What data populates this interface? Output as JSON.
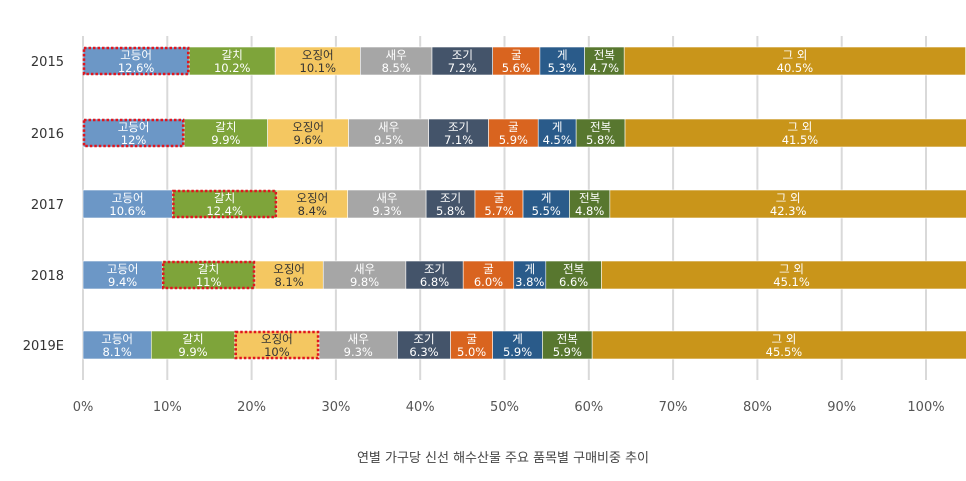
{
  "chart_data": {
    "type": "bar",
    "orientation": "horizontal",
    "stacked": "percent",
    "caption": "연별 가구당 신선 해수산물 주요 품목별 구매비중 추이",
    "categories": [
      "2015",
      "2016",
      "2017",
      "2018",
      "2019E"
    ],
    "xlim": [
      0,
      100
    ],
    "x_ticks": [
      "0%",
      "10%",
      "20%",
      "30%",
      "40%",
      "50%",
      "60%",
      "70%",
      "80%",
      "90%",
      "100%"
    ],
    "grid": "vertical",
    "series": [
      {
        "name": "고등어",
        "color": "#6c97c6",
        "text_color": "#ffffff",
        "values": [
          12.6,
          12,
          10.6,
          9.4,
          8.1
        ],
        "labels": [
          "12.6%",
          "12%",
          "10.6%",
          "9.4%",
          "8.1%"
        ]
      },
      {
        "name": "갈치",
        "color": "#7ea43a",
        "text_color": "#ffffff",
        "values": [
          10.2,
          9.9,
          12.4,
          11,
          9.9
        ],
        "labels": [
          "10.2%",
          "9.9%",
          "12.4%",
          "11%",
          "9.9%"
        ]
      },
      {
        "name": "오징어",
        "color": "#f4c761",
        "text_color": "#333333",
        "values": [
          10.1,
          9.6,
          8.4,
          8.1,
          10
        ],
        "labels": [
          "10.1%",
          "9.6%",
          "8.4%",
          "8.1%",
          "10%"
        ]
      },
      {
        "name": "새우",
        "color": "#a6a6a6",
        "text_color": "#ffffff",
        "values": [
          8.5,
          9.5,
          9.3,
          9.8,
          9.3
        ],
        "labels": [
          "8.5%",
          "9.5%",
          "9.3%",
          "9.8%",
          "9.3%"
        ]
      },
      {
        "name": "조기",
        "color": "#44546a",
        "text_color": "#ffffff",
        "values": [
          7.2,
          7.1,
          5.8,
          6.8,
          6.3
        ],
        "labels": [
          "7.2%",
          "7.1%",
          "5.8%",
          "6.8%",
          "6.3%"
        ]
      },
      {
        "name": "굴",
        "color": "#d9641f",
        "text_color": "#ffffff",
        "values": [
          5.6,
          5.9,
          5.7,
          6.0,
          5.0
        ],
        "labels": [
          "5.6%",
          "5.9%",
          "5.7%",
          "6.0%",
          "5.0%"
        ]
      },
      {
        "name": "게",
        "color": "#2a5b8a",
        "text_color": "#ffffff",
        "values": [
          5.3,
          4.5,
          5.5,
          3.8,
          5.9
        ],
        "labels": [
          "5.3%",
          "4.5%",
          "5.5%",
          "3.8%",
          "5.9%"
        ]
      },
      {
        "name": "전복",
        "color": "#58772f",
        "text_color": "#ffffff",
        "values": [
          4.7,
          5.8,
          4.8,
          6.6,
          5.9
        ],
        "labels": [
          "4.7%",
          "5.8%",
          "4.8%",
          "6.6%",
          "5.9%"
        ]
      },
      {
        "name": "그 외",
        "color": "#c9951a",
        "text_color": "#ffffff",
        "values": [
          40.5,
          41.5,
          42.3,
          45.1,
          45.5
        ],
        "labels": [
          "40.5%",
          "41.5%",
          "42.3%",
          "45.1%",
          "45.5%"
        ]
      }
    ],
    "highlights": [
      {
        "category": "2015",
        "series": "고등어"
      },
      {
        "category": "2016",
        "series": "고등어"
      },
      {
        "category": "2017",
        "series": "갈치"
      },
      {
        "category": "2018",
        "series": "갈치"
      },
      {
        "category": "2019E",
        "series": "오징어"
      }
    ],
    "highlight_color": "#e0161e"
  }
}
